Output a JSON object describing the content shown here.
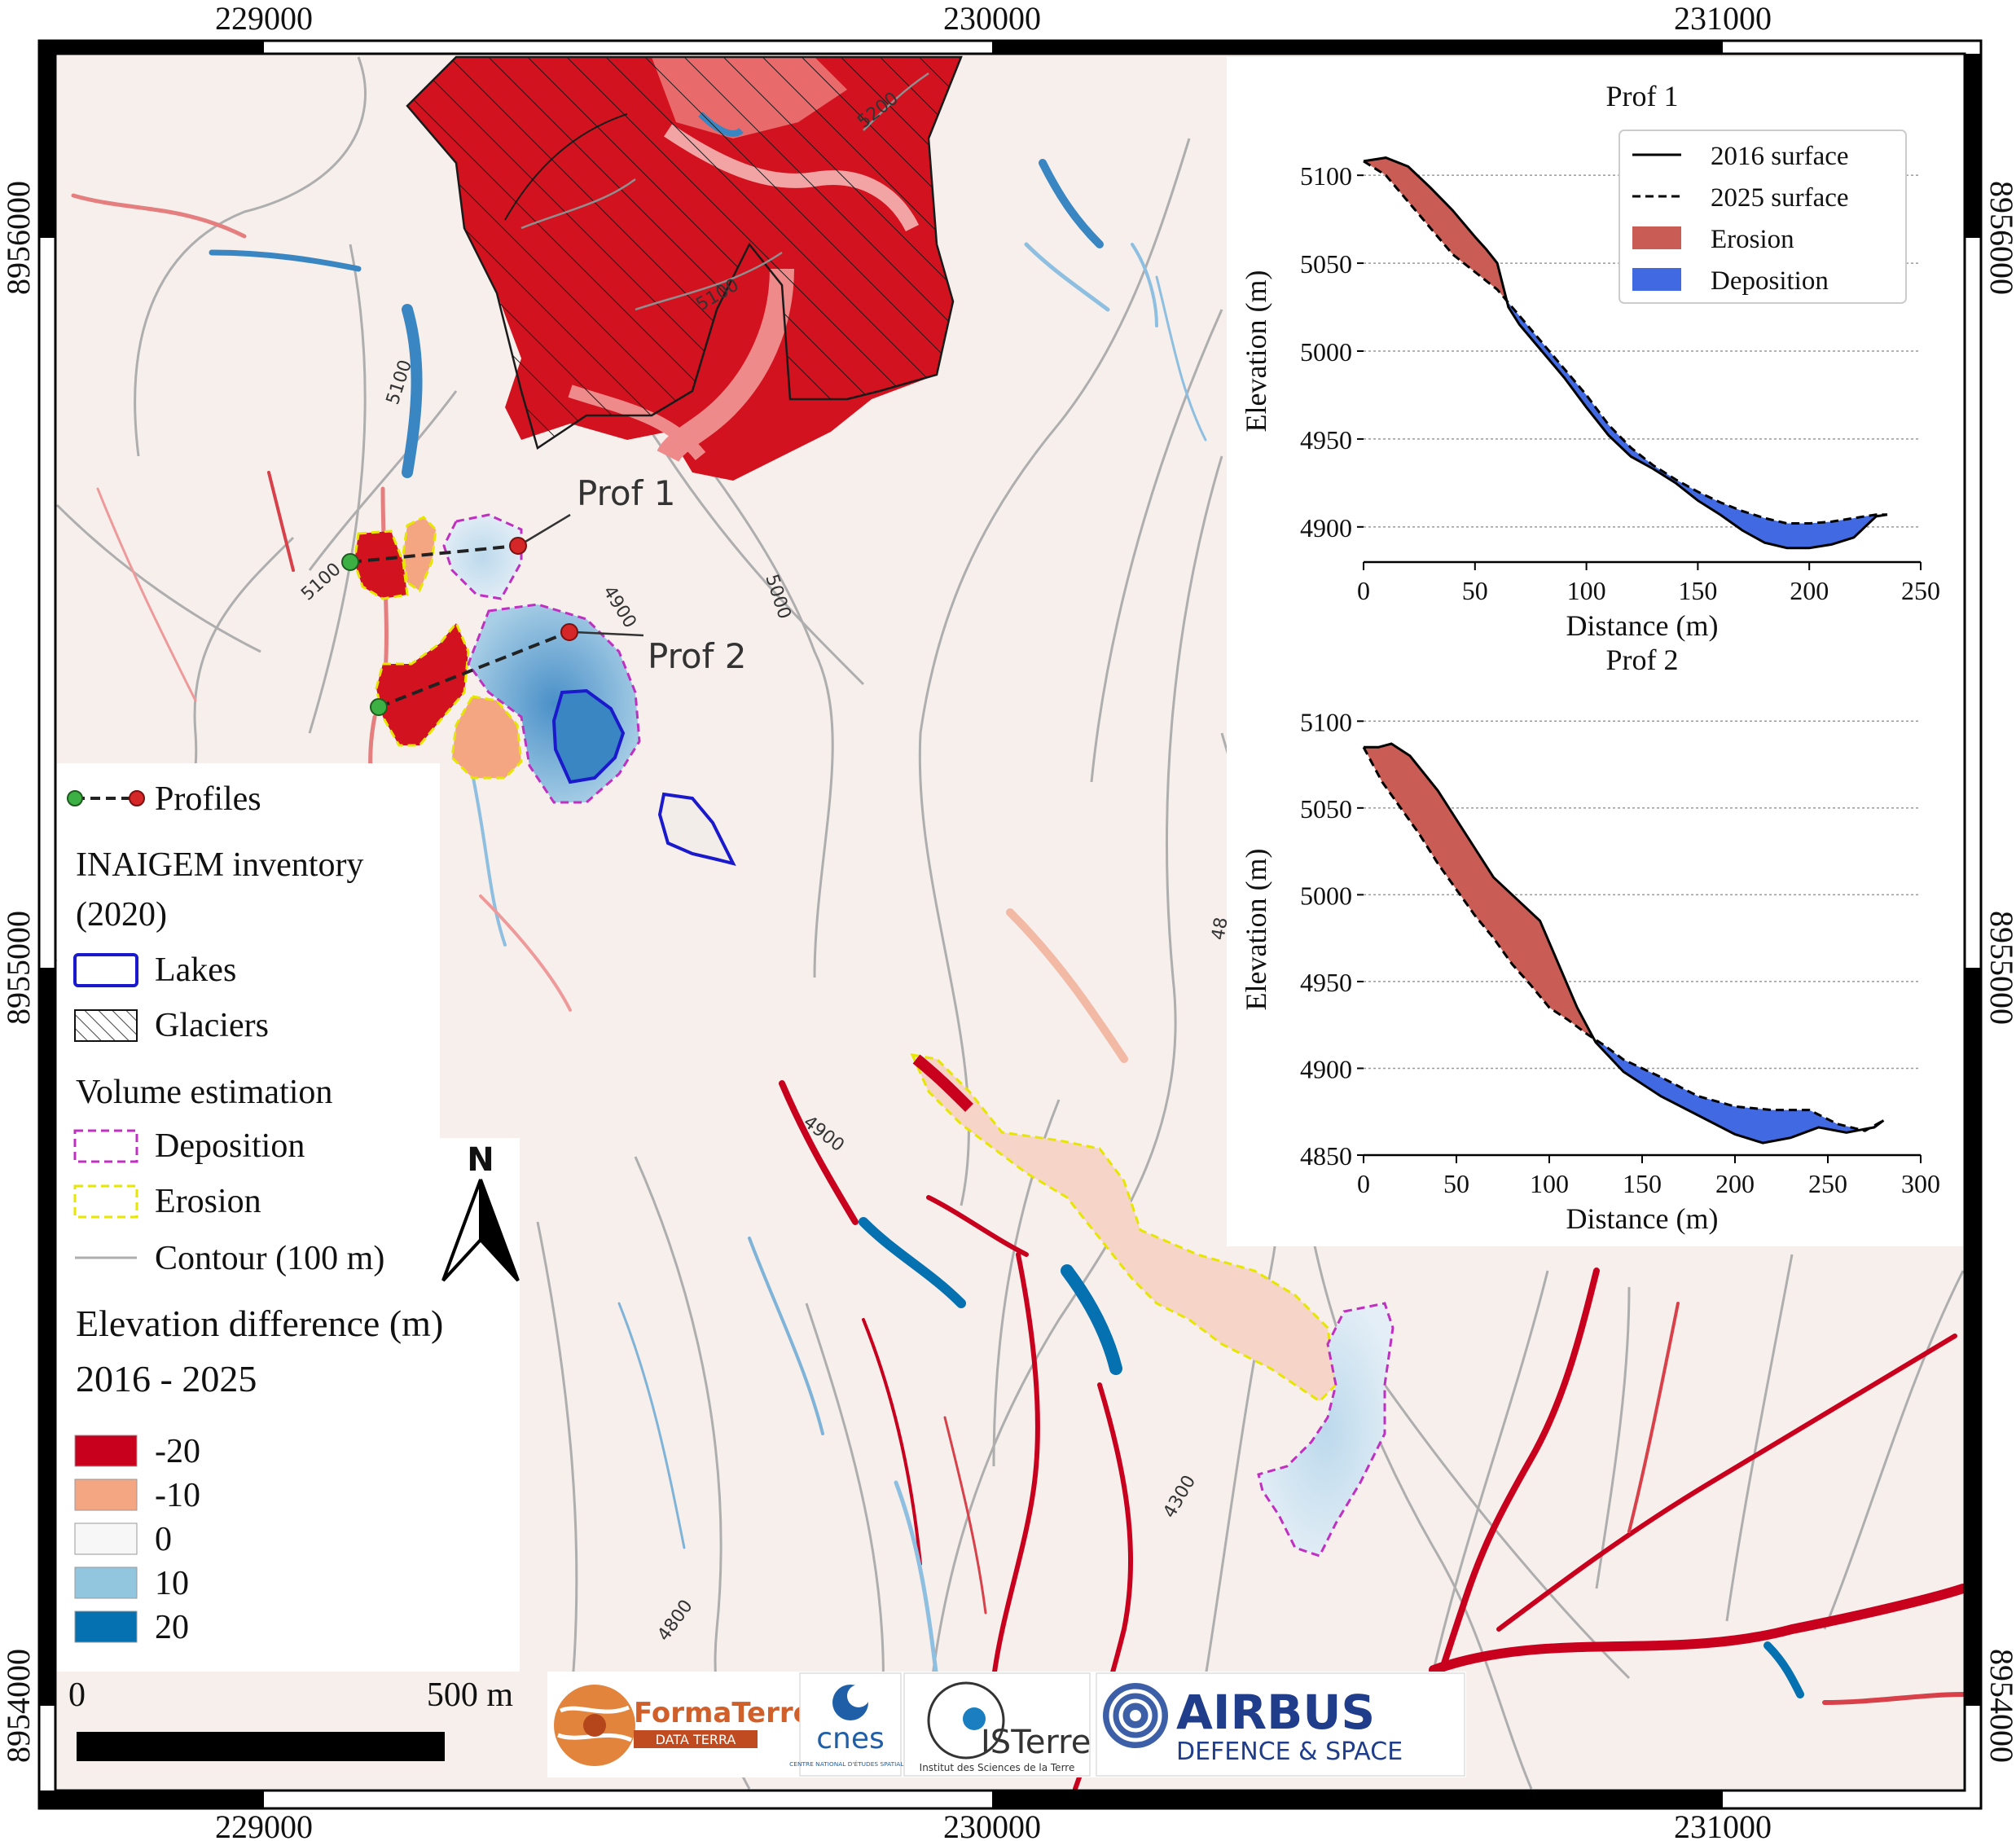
{
  "map": {
    "x_ticks": [
      "229000",
      "230000",
      "231000"
    ],
    "y_ticks": [
      "8956000",
      "8955000",
      "8954000"
    ],
    "contour_labels": [
      "5200",
      "5100",
      "5100",
      "5100",
      "5000",
      "4900",
      "4900",
      "4300",
      "4800",
      "48"
    ],
    "profile_labels": [
      "Prof 1",
      "Prof 2"
    ],
    "north_label": "N",
    "colors": {
      "erosion_lines": "#e6e600",
      "deposition_lines": "#c030c0",
      "lakes": "#1a1acc",
      "contour": "#aaaaaa",
      "neg20": "#c8001e",
      "neg10": "#f4a582",
      "zero": "#f7f7f7",
      "pos10": "#92c5de",
      "pos20": "#0571b0"
    }
  },
  "legend": {
    "profiles": "Profiles",
    "inventory_title": "INAIGEM inventory",
    "inventory_year": "(2020)",
    "lakes": "Lakes",
    "glaciers": "Glaciers",
    "volume_title": "Volume estimation",
    "deposition": "Deposition",
    "erosion": "Erosion",
    "contour": "Contour (100 m)",
    "diff_title": "Elevation difference (m)",
    "diff_period": "2016 - 2025",
    "classes": [
      {
        "label": "-20",
        "color": "#c8001e"
      },
      {
        "label": "-10",
        "color": "#f4a582"
      },
      {
        "label": "0",
        "color": "#f7f7f7"
      },
      {
        "label": "10",
        "color": "#92c5de"
      },
      {
        "label": "20",
        "color": "#0571b0"
      }
    ]
  },
  "scalebar": {
    "start": "0",
    "end": "500 m"
  },
  "logos": {
    "formaterre": "FormaTerre",
    "formaterre_sub": "DATA TERRA",
    "cnes": "cnes",
    "cnes_sub": "CENTRE NATIONAL D'ÉTUDES SPATIALES",
    "isterre": "ISTerre",
    "isterre_sub": "Institut des Sciences de la Terre",
    "airbus": "AIRBUS",
    "airbus_sub": "DEFENCE & SPACE"
  },
  "chart_data": [
    {
      "type": "area",
      "title": "Prof 1",
      "xlabel": "Distance (m)",
      "ylabel": "Elevation (m)",
      "xlim": [
        0,
        250
      ],
      "ylim": [
        4880,
        5120
      ],
      "xticks": [
        0,
        50,
        100,
        150,
        200,
        250
      ],
      "yticks": [
        4900,
        4950,
        5000,
        5050,
        5100
      ],
      "grid": "horizontal dotted",
      "legend_position": "top-right",
      "legend": [
        "2016 surface",
        "2025 surface",
        "Erosion",
        "Deposition"
      ],
      "colors": {
        "erosion": "#c95c54",
        "deposition": "#4169e1"
      },
      "series": [
        {
          "name": "2016 surface",
          "x": [
            0,
            10,
            20,
            30,
            40,
            50,
            55,
            60,
            65,
            70,
            80,
            90,
            100,
            110,
            120,
            130,
            140,
            150,
            160,
            170,
            180,
            190,
            200,
            210,
            220,
            225,
            230,
            235
          ],
          "y": [
            5108,
            5110,
            5105,
            5093,
            5080,
            5065,
            5058,
            5050,
            5025,
            5015,
            5000,
            4985,
            4968,
            4952,
            4940,
            4933,
            4925,
            4915,
            4907,
            4898,
            4891,
            4888,
            4888,
            4890,
            4894,
            4900,
            4906,
            4907
          ]
        },
        {
          "name": "2025 surface",
          "x": [
            0,
            10,
            20,
            30,
            40,
            50,
            60,
            70,
            80,
            90,
            100,
            110,
            120,
            130,
            140,
            150,
            160,
            170,
            180,
            190,
            200,
            210,
            220,
            230,
            235
          ],
          "y": [
            5108,
            5100,
            5085,
            5070,
            5055,
            5045,
            5035,
            5020,
            5005,
            4990,
            4975,
            4958,
            4945,
            4935,
            4927,
            4920,
            4914,
            4909,
            4905,
            4902,
            4902,
            4903,
            4905,
            4907,
            4907
          ]
        }
      ]
    },
    {
      "type": "area",
      "title": "Prof 2",
      "xlabel": "Distance (m)",
      "ylabel": "Elevation (m)",
      "xlim": [
        0,
        300
      ],
      "ylim": [
        4850,
        5110
      ],
      "xticks": [
        0,
        50,
        100,
        150,
        200,
        250,
        300
      ],
      "yticks": [
        4850,
        4900,
        4950,
        5000,
        5050,
        5100
      ],
      "grid": "horizontal dotted",
      "colors": {
        "erosion": "#c95c54",
        "deposition": "#4169e1"
      },
      "series": [
        {
          "name": "2016 surface",
          "x": [
            0,
            8,
            15,
            25,
            40,
            55,
            70,
            85,
            95,
            105,
            115,
            125,
            140,
            160,
            180,
            200,
            215,
            230,
            245,
            260,
            275,
            280
          ],
          "y": [
            5085,
            5085,
            5087,
            5080,
            5060,
            5035,
            5010,
            4995,
            4985,
            4960,
            4935,
            4915,
            4898,
            4884,
            4873,
            4862,
            4857,
            4860,
            4866,
            4863,
            4866,
            4870
          ]
        },
        {
          "name": "2025 surface",
          "x": [
            0,
            10,
            20,
            30,
            40,
            50,
            60,
            70,
            80,
            90,
            100,
            110,
            120,
            130,
            140,
            160,
            180,
            200,
            220,
            240,
            255,
            270,
            280
          ],
          "y": [
            5085,
            5065,
            5050,
            5035,
            5018,
            5003,
            4988,
            4975,
            4960,
            4948,
            4935,
            4928,
            4920,
            4913,
            4905,
            4895,
            4884,
            4878,
            4876,
            4876,
            4868,
            4864,
            4870
          ]
        }
      ]
    }
  ]
}
